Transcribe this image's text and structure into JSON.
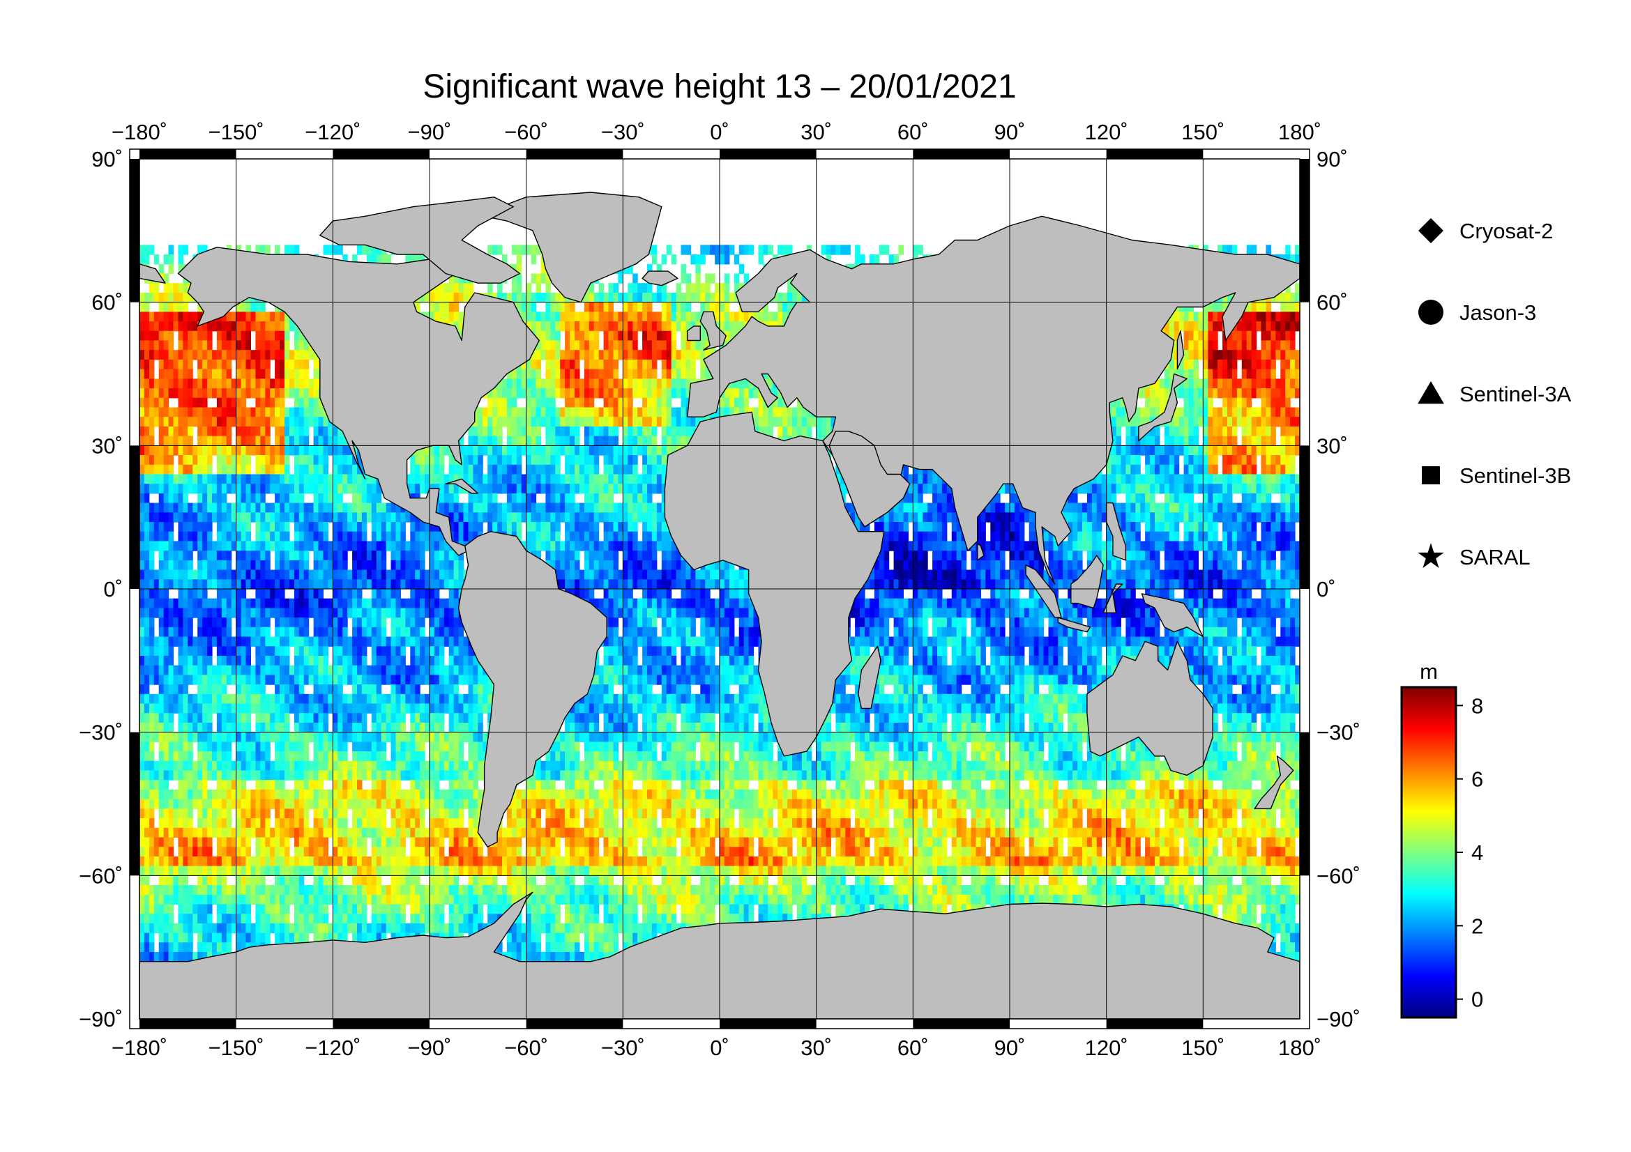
{
  "title": "Significant wave height 13 – 20/01/2021",
  "map": {
    "projection": "equirectangular",
    "lon_range": [
      -180,
      180
    ],
    "lat_range": [
      -90,
      90
    ],
    "grid": true,
    "lon_ticks": [
      {
        "value": -180,
        "label": "−180˚"
      },
      {
        "value": -150,
        "label": "−150˚"
      },
      {
        "value": -120,
        "label": "−120˚"
      },
      {
        "value": -90,
        "label": "−90˚"
      },
      {
        "value": -60,
        "label": "−60˚"
      },
      {
        "value": -30,
        "label": "−30˚"
      },
      {
        "value": 0,
        "label": "0˚"
      },
      {
        "value": 30,
        "label": "30˚"
      },
      {
        "value": 60,
        "label": "60˚"
      },
      {
        "value": 90,
        "label": "90˚"
      },
      {
        "value": 120,
        "label": "120˚"
      },
      {
        "value": 150,
        "label": "150˚"
      },
      {
        "value": 180,
        "label": "180˚"
      }
    ],
    "lat_ticks": [
      {
        "value": 90,
        "label": "90˚"
      },
      {
        "value": 60,
        "label": "60˚"
      },
      {
        "value": 30,
        "label": "30˚"
      },
      {
        "value": 0,
        "label": "0˚"
      },
      {
        "value": -30,
        "label": "−30˚"
      },
      {
        "value": -60,
        "label": "−60˚"
      },
      {
        "value": -90,
        "label": "−90˚"
      }
    ],
    "land_color": "#bebebe",
    "ocean_color": "#ffffff",
    "ice_color": "#ffffff"
  },
  "legend": {
    "placement": "right",
    "items": [
      {
        "label": "Cryosat-2",
        "symbol": "diamond"
      },
      {
        "label": "Jason-3",
        "symbol": "circle"
      },
      {
        "label": "Sentinel-3A",
        "symbol": "triangle"
      },
      {
        "label": "Sentinel-3B",
        "symbol": "square"
      },
      {
        "label": "SARAL",
        "symbol": "star"
      }
    ]
  },
  "colorbar": {
    "unit": "m",
    "range": [
      -0.5,
      8.5
    ],
    "ticks": [
      {
        "value": 0,
        "label": "0"
      },
      {
        "value": 2,
        "label": "2"
      },
      {
        "value": 4,
        "label": "4"
      },
      {
        "value": 6,
        "label": "6"
      },
      {
        "value": 8,
        "label": "8"
      }
    ],
    "colormap": [
      "#00007f",
      "#0000ff",
      "#007fff",
      "#00ffff",
      "#7fff7f",
      "#ffff00",
      "#ff7f00",
      "#ff0000",
      "#7f0000"
    ]
  }
}
